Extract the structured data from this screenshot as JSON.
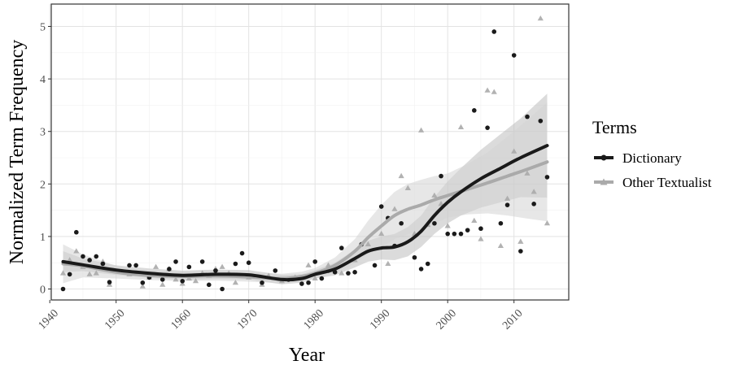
{
  "chart_data": {
    "type": "scatter",
    "xlabel": "Year",
    "ylabel": "Normalized Term Frequency",
    "xlim": [
      1940,
      2017
    ],
    "ylim": [
      -0.2,
      5.3
    ],
    "x_ticks": [
      1940,
      1950,
      1960,
      1970,
      1980,
      1990,
      2000,
      2010
    ],
    "y_ticks": [
      0,
      1,
      2,
      3,
      4,
      5
    ],
    "grid": true,
    "legend": {
      "title": "Terms",
      "position": "right"
    },
    "colors": {
      "dictionary": "#1a1a1a",
      "other": "#aaaaaa",
      "band_dictionary": "#bdbdbd",
      "band_other": "#d3d3d3"
    },
    "series": [
      {
        "name": "Dictionary",
        "marker": "circle",
        "points": [
          [
            1942,
            0.0
          ],
          [
            1943,
            0.28
          ],
          [
            1944,
            1.08
          ],
          [
            1945,
            0.62
          ],
          [
            1946,
            0.55
          ],
          [
            1947,
            0.62
          ],
          [
            1948,
            0.48
          ],
          [
            1949,
            0.13
          ],
          [
            1952,
            0.45
          ],
          [
            1953,
            0.45
          ],
          [
            1954,
            0.12
          ],
          [
            1955,
            0.22
          ],
          [
            1957,
            0.18
          ],
          [
            1958,
            0.38
          ],
          [
            1959,
            0.52
          ],
          [
            1960,
            0.15
          ],
          [
            1961,
            0.42
          ],
          [
            1963,
            0.52
          ],
          [
            1964,
            0.08
          ],
          [
            1965,
            0.35
          ],
          [
            1966,
            0.0
          ],
          [
            1968,
            0.48
          ],
          [
            1969,
            0.68
          ],
          [
            1970,
            0.5
          ],
          [
            1972,
            0.12
          ],
          [
            1974,
            0.35
          ],
          [
            1976,
            0.18
          ],
          [
            1978,
            0.1
          ],
          [
            1979,
            0.12
          ],
          [
            1980,
            0.52
          ],
          [
            1981,
            0.2
          ],
          [
            1982,
            0.35
          ],
          [
            1983,
            0.32
          ],
          [
            1984,
            0.78
          ],
          [
            1985,
            0.3
          ],
          [
            1986,
            0.32
          ],
          [
            1987,
            0.85
          ],
          [
            1989,
            0.45
          ],
          [
            1990,
            1.57
          ],
          [
            1991,
            1.35
          ],
          [
            1992,
            0.82
          ],
          [
            1993,
            1.25
          ],
          [
            1995,
            0.6
          ],
          [
            1996,
            0.38
          ],
          [
            1997,
            0.48
          ],
          [
            1998,
            1.25
          ],
          [
            1999,
            2.15
          ],
          [
            2000,
            1.05
          ],
          [
            2001,
            1.05
          ],
          [
            2002,
            1.05
          ],
          [
            2003,
            1.12
          ],
          [
            2004,
            3.4
          ],
          [
            2005,
            1.15
          ],
          [
            2006,
            3.07
          ],
          [
            2007,
            4.9
          ],
          [
            2008,
            1.25
          ],
          [
            2009,
            1.6
          ],
          [
            2010,
            4.45
          ],
          [
            2011,
            0.72
          ],
          [
            2012,
            3.28
          ],
          [
            2013,
            1.62
          ],
          [
            2014,
            3.2
          ],
          [
            2015,
            2.13
          ]
        ],
        "trend": [
          [
            1942,
            0.52
          ],
          [
            1945,
            0.46
          ],
          [
            1950,
            0.36
          ],
          [
            1955,
            0.3
          ],
          [
            1960,
            0.26
          ],
          [
            1965,
            0.28
          ],
          [
            1970,
            0.27
          ],
          [
            1975,
            0.18
          ],
          [
            1978,
            0.2
          ],
          [
            1980,
            0.28
          ],
          [
            1983,
            0.38
          ],
          [
            1986,
            0.58
          ],
          [
            1988,
            0.72
          ],
          [
            1990,
            0.78
          ],
          [
            1992,
            0.8
          ],
          [
            1994,
            0.9
          ],
          [
            1996,
            1.1
          ],
          [
            1998,
            1.4
          ],
          [
            2000,
            1.65
          ],
          [
            2002,
            1.85
          ],
          [
            2005,
            2.1
          ],
          [
            2008,
            2.3
          ],
          [
            2011,
            2.5
          ],
          [
            2015,
            2.73
          ]
        ],
        "band_upper": [
          [
            1942,
            0.72
          ],
          [
            1945,
            0.58
          ],
          [
            1950,
            0.45
          ],
          [
            1955,
            0.39
          ],
          [
            1960,
            0.35
          ],
          [
            1965,
            0.37
          ],
          [
            1970,
            0.36
          ],
          [
            1975,
            0.27
          ],
          [
            1978,
            0.28
          ],
          [
            1980,
            0.36
          ],
          [
            1983,
            0.5
          ],
          [
            1986,
            0.75
          ],
          [
            1988,
            0.92
          ],
          [
            1990,
            1.0
          ],
          [
            1992,
            1.05
          ],
          [
            1994,
            1.18
          ],
          [
            1996,
            1.4
          ],
          [
            1998,
            1.75
          ],
          [
            2000,
            2.05
          ],
          [
            2002,
            2.3
          ],
          [
            2005,
            2.65
          ],
          [
            2008,
            2.95
          ],
          [
            2011,
            3.25
          ],
          [
            2015,
            3.72
          ]
        ],
        "band_lower": [
          [
            1942,
            0.32
          ],
          [
            1945,
            0.34
          ],
          [
            1950,
            0.27
          ],
          [
            1955,
            0.21
          ],
          [
            1960,
            0.17
          ],
          [
            1965,
            0.19
          ],
          [
            1970,
            0.18
          ],
          [
            1975,
            0.09
          ],
          [
            1978,
            0.12
          ],
          [
            1980,
            0.2
          ],
          [
            1983,
            0.26
          ],
          [
            1986,
            0.41
          ],
          [
            1988,
            0.52
          ],
          [
            1990,
            0.56
          ],
          [
            1992,
            0.55
          ],
          [
            1994,
            0.62
          ],
          [
            1996,
            0.8
          ],
          [
            1998,
            1.05
          ],
          [
            2000,
            1.25
          ],
          [
            2002,
            1.4
          ],
          [
            2005,
            1.55
          ],
          [
            2008,
            1.65
          ],
          [
            2011,
            1.75
          ],
          [
            2015,
            1.74
          ]
        ]
      },
      {
        "name": "Other Textualist",
        "marker": "triangle",
        "points": [
          [
            1942,
            0.3
          ],
          [
            1943,
            0.55
          ],
          [
            1944,
            0.72
          ],
          [
            1945,
            0.42
          ],
          [
            1946,
            0.28
          ],
          [
            1947,
            0.3
          ],
          [
            1948,
            0.52
          ],
          [
            1949,
            0.08
          ],
          [
            1951,
            0.32
          ],
          [
            1952,
            0.28
          ],
          [
            1953,
            0.3
          ],
          [
            1954,
            0.05
          ],
          [
            1955,
            0.22
          ],
          [
            1956,
            0.42
          ],
          [
            1957,
            0.08
          ],
          [
            1958,
            0.38
          ],
          [
            1959,
            0.18
          ],
          [
            1960,
            0.1
          ],
          [
            1961,
            0.2
          ],
          [
            1962,
            0.15
          ],
          [
            1963,
            0.3
          ],
          [
            1964,
            0.25
          ],
          [
            1965,
            0.38
          ],
          [
            1966,
            0.42
          ],
          [
            1967,
            0.3
          ],
          [
            1968,
            0.12
          ],
          [
            1970,
            0.22
          ],
          [
            1972,
            0.08
          ],
          [
            1973,
            0.25
          ],
          [
            1975,
            0.15
          ],
          [
            1977,
            0.22
          ],
          [
            1979,
            0.45
          ],
          [
            1980,
            0.2
          ],
          [
            1982,
            0.45
          ],
          [
            1984,
            0.3
          ],
          [
            1986,
            0.55
          ],
          [
            1988,
            0.85
          ],
          [
            1990,
            1.05
          ],
          [
            1991,
            0.48
          ],
          [
            1992,
            1.52
          ],
          [
            1993,
            2.15
          ],
          [
            1994,
            1.92
          ],
          [
            1995,
            1.05
          ],
          [
            1996,
            3.02
          ],
          [
            1997,
            1.22
          ],
          [
            1998,
            1.78
          ],
          [
            1999,
            1.62
          ],
          [
            2000,
            1.2
          ],
          [
            2002,
            3.08
          ],
          [
            2004,
            1.3
          ],
          [
            2005,
            0.95
          ],
          [
            2006,
            3.78
          ],
          [
            2007,
            3.75
          ],
          [
            2008,
            0.82
          ],
          [
            2009,
            1.72
          ],
          [
            2010,
            2.62
          ],
          [
            2011,
            0.9
          ],
          [
            2012,
            2.2
          ],
          [
            2013,
            1.85
          ],
          [
            2014,
            5.15
          ],
          [
            2015,
            1.25
          ]
        ],
        "trend": [
          [
            1942,
            0.48
          ],
          [
            1945,
            0.44
          ],
          [
            1950,
            0.32
          ],
          [
            1955,
            0.26
          ],
          [
            1960,
            0.24
          ],
          [
            1965,
            0.25
          ],
          [
            1970,
            0.23
          ],
          [
            1975,
            0.2
          ],
          [
            1978,
            0.24
          ],
          [
            1980,
            0.3
          ],
          [
            1983,
            0.45
          ],
          [
            1986,
            0.72
          ],
          [
            1988,
            0.98
          ],
          [
            1990,
            1.2
          ],
          [
            1992,
            1.4
          ],
          [
            1994,
            1.52
          ],
          [
            1996,
            1.6
          ],
          [
            1998,
            1.7
          ],
          [
            2000,
            1.78
          ],
          [
            2003,
            1.9
          ],
          [
            2006,
            2.02
          ],
          [
            2009,
            2.15
          ],
          [
            2012,
            2.28
          ],
          [
            2015,
            2.42
          ]
        ],
        "band_upper": [
          [
            1942,
            0.85
          ],
          [
            1945,
            0.66
          ],
          [
            1950,
            0.44
          ],
          [
            1955,
            0.35
          ],
          [
            1960,
            0.33
          ],
          [
            1965,
            0.34
          ],
          [
            1970,
            0.32
          ],
          [
            1975,
            0.29
          ],
          [
            1978,
            0.33
          ],
          [
            1980,
            0.4
          ],
          [
            1983,
            0.6
          ],
          [
            1986,
            0.95
          ],
          [
            1988,
            1.3
          ],
          [
            1990,
            1.6
          ],
          [
            1992,
            1.85
          ],
          [
            1994,
            2.0
          ],
          [
            1996,
            2.08
          ],
          [
            1998,
            2.15
          ],
          [
            2000,
            2.2
          ],
          [
            2003,
            2.38
          ],
          [
            2006,
            2.6
          ],
          [
            2009,
            2.9
          ],
          [
            2012,
            3.22
          ],
          [
            2015,
            3.55
          ]
        ],
        "band_lower": [
          [
            1942,
            0.11
          ],
          [
            1945,
            0.22
          ],
          [
            1950,
            0.2
          ],
          [
            1955,
            0.17
          ],
          [
            1960,
            0.15
          ],
          [
            1965,
            0.16
          ],
          [
            1970,
            0.14
          ],
          [
            1975,
            0.11
          ],
          [
            1978,
            0.15
          ],
          [
            1980,
            0.2
          ],
          [
            1983,
            0.3
          ],
          [
            1986,
            0.49
          ],
          [
            1988,
            0.66
          ],
          [
            1990,
            0.8
          ],
          [
            1992,
            0.95
          ],
          [
            1994,
            1.04
          ],
          [
            1996,
            1.12
          ],
          [
            1998,
            1.25
          ],
          [
            2000,
            1.36
          ],
          [
            2003,
            1.42
          ],
          [
            2006,
            1.44
          ],
          [
            2009,
            1.4
          ],
          [
            2012,
            1.34
          ],
          [
            2015,
            1.29
          ]
        ]
      }
    ]
  }
}
